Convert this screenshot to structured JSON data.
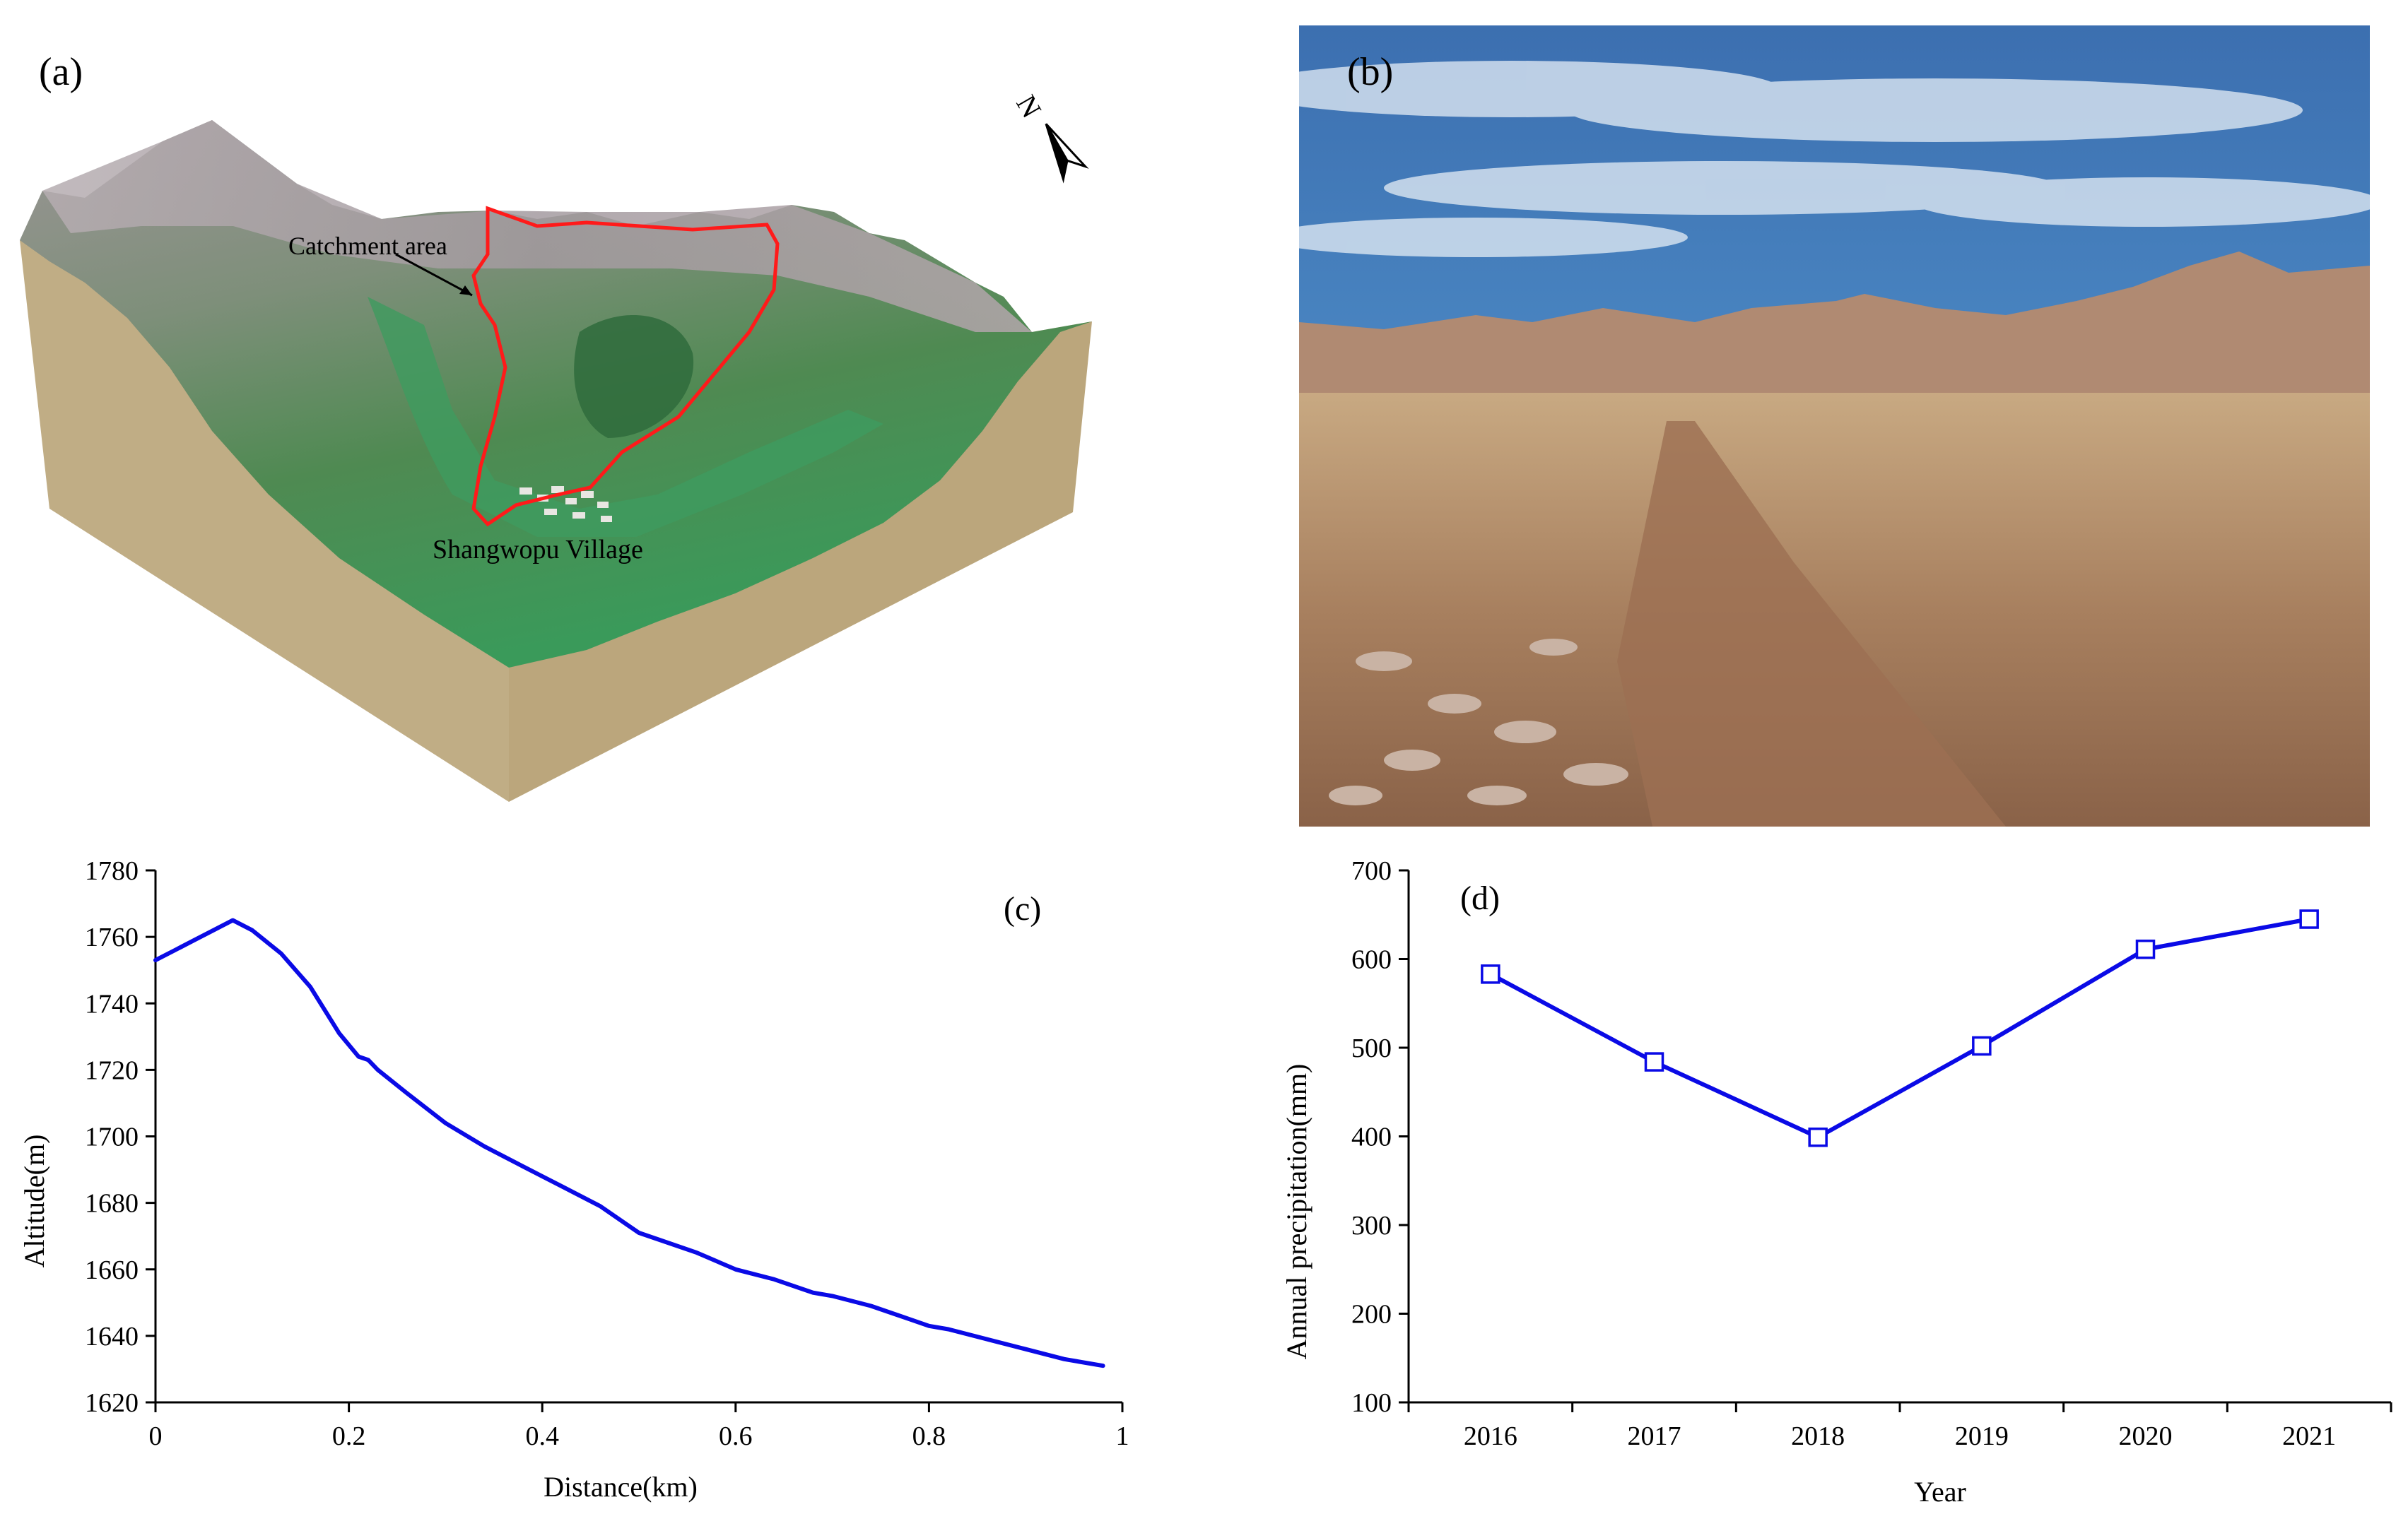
{
  "panel_a": {
    "label": "(a)",
    "annotation_catchment": "Catchment area",
    "annotation_village": "Shangwopu Village",
    "north_label": "N"
  },
  "panel_b": {
    "label": "(b)"
  },
  "chart_data": [
    {
      "id": "c",
      "type": "line",
      "panel_label": "(c)",
      "xlabel": "Distance(km)",
      "ylabel": "Altitude(m)",
      "xlim": [
        0,
        1
      ],
      "ylim": [
        1620,
        1780
      ],
      "xticks": [
        0,
        0.2,
        0.4,
        0.6,
        0.8,
        1
      ],
      "xtick_labels": [
        "0",
        "0.2",
        "0.4",
        "0.6",
        "0.8",
        "1"
      ],
      "yticks": [
        1620,
        1640,
        1660,
        1680,
        1700,
        1720,
        1740,
        1760,
        1780
      ],
      "ytick_labels": [
        "1620",
        "1640",
        "1660",
        "1680",
        "1700",
        "1720",
        "1740",
        "1760",
        "1780"
      ],
      "color": "#0a0ae6",
      "markers": false,
      "series": [
        {
          "x": [
            0,
            0.02,
            0.04,
            0.06,
            0.08,
            0.1,
            0.13,
            0.16,
            0.19,
            0.21,
            0.22,
            0.23,
            0.26,
            0.3,
            0.34,
            0.38,
            0.42,
            0.46,
            0.49,
            0.5,
            0.52,
            0.56,
            0.6,
            0.64,
            0.68,
            0.7,
            0.74,
            0.78,
            0.8,
            0.82,
            0.86,
            0.9,
            0.94,
            0.98
          ],
          "y": [
            1753,
            1756,
            1759,
            1762,
            1765,
            1762,
            1755,
            1745,
            1731,
            1724,
            1723,
            1720,
            1713,
            1704,
            1697,
            1691,
            1685,
            1679,
            1673,
            1671,
            1669,
            1665,
            1660,
            1657,
            1653,
            1652,
            1649,
            1645,
            1643,
            1642,
            1639,
            1636,
            1633,
            1631
          ]
        }
      ]
    },
    {
      "id": "d",
      "type": "line",
      "panel_label": "(d)",
      "xlabel": "Year",
      "ylabel": "Annual precipitation(mm)",
      "categories": [
        "2016",
        "2017",
        "2018",
        "2019",
        "2020",
        "2021"
      ],
      "ylim": [
        100,
        700
      ],
      "yticks": [
        100,
        200,
        300,
        400,
        500,
        600,
        700
      ],
      "ytick_labels": [
        "100",
        "200",
        "300",
        "400",
        "500",
        "600",
        "700"
      ],
      "color": "#0a0ae6",
      "markers": true,
      "marker": "open-square",
      "series": [
        {
          "values": [
            583,
            484,
            399,
            502,
            611,
            645
          ]
        }
      ]
    }
  ]
}
